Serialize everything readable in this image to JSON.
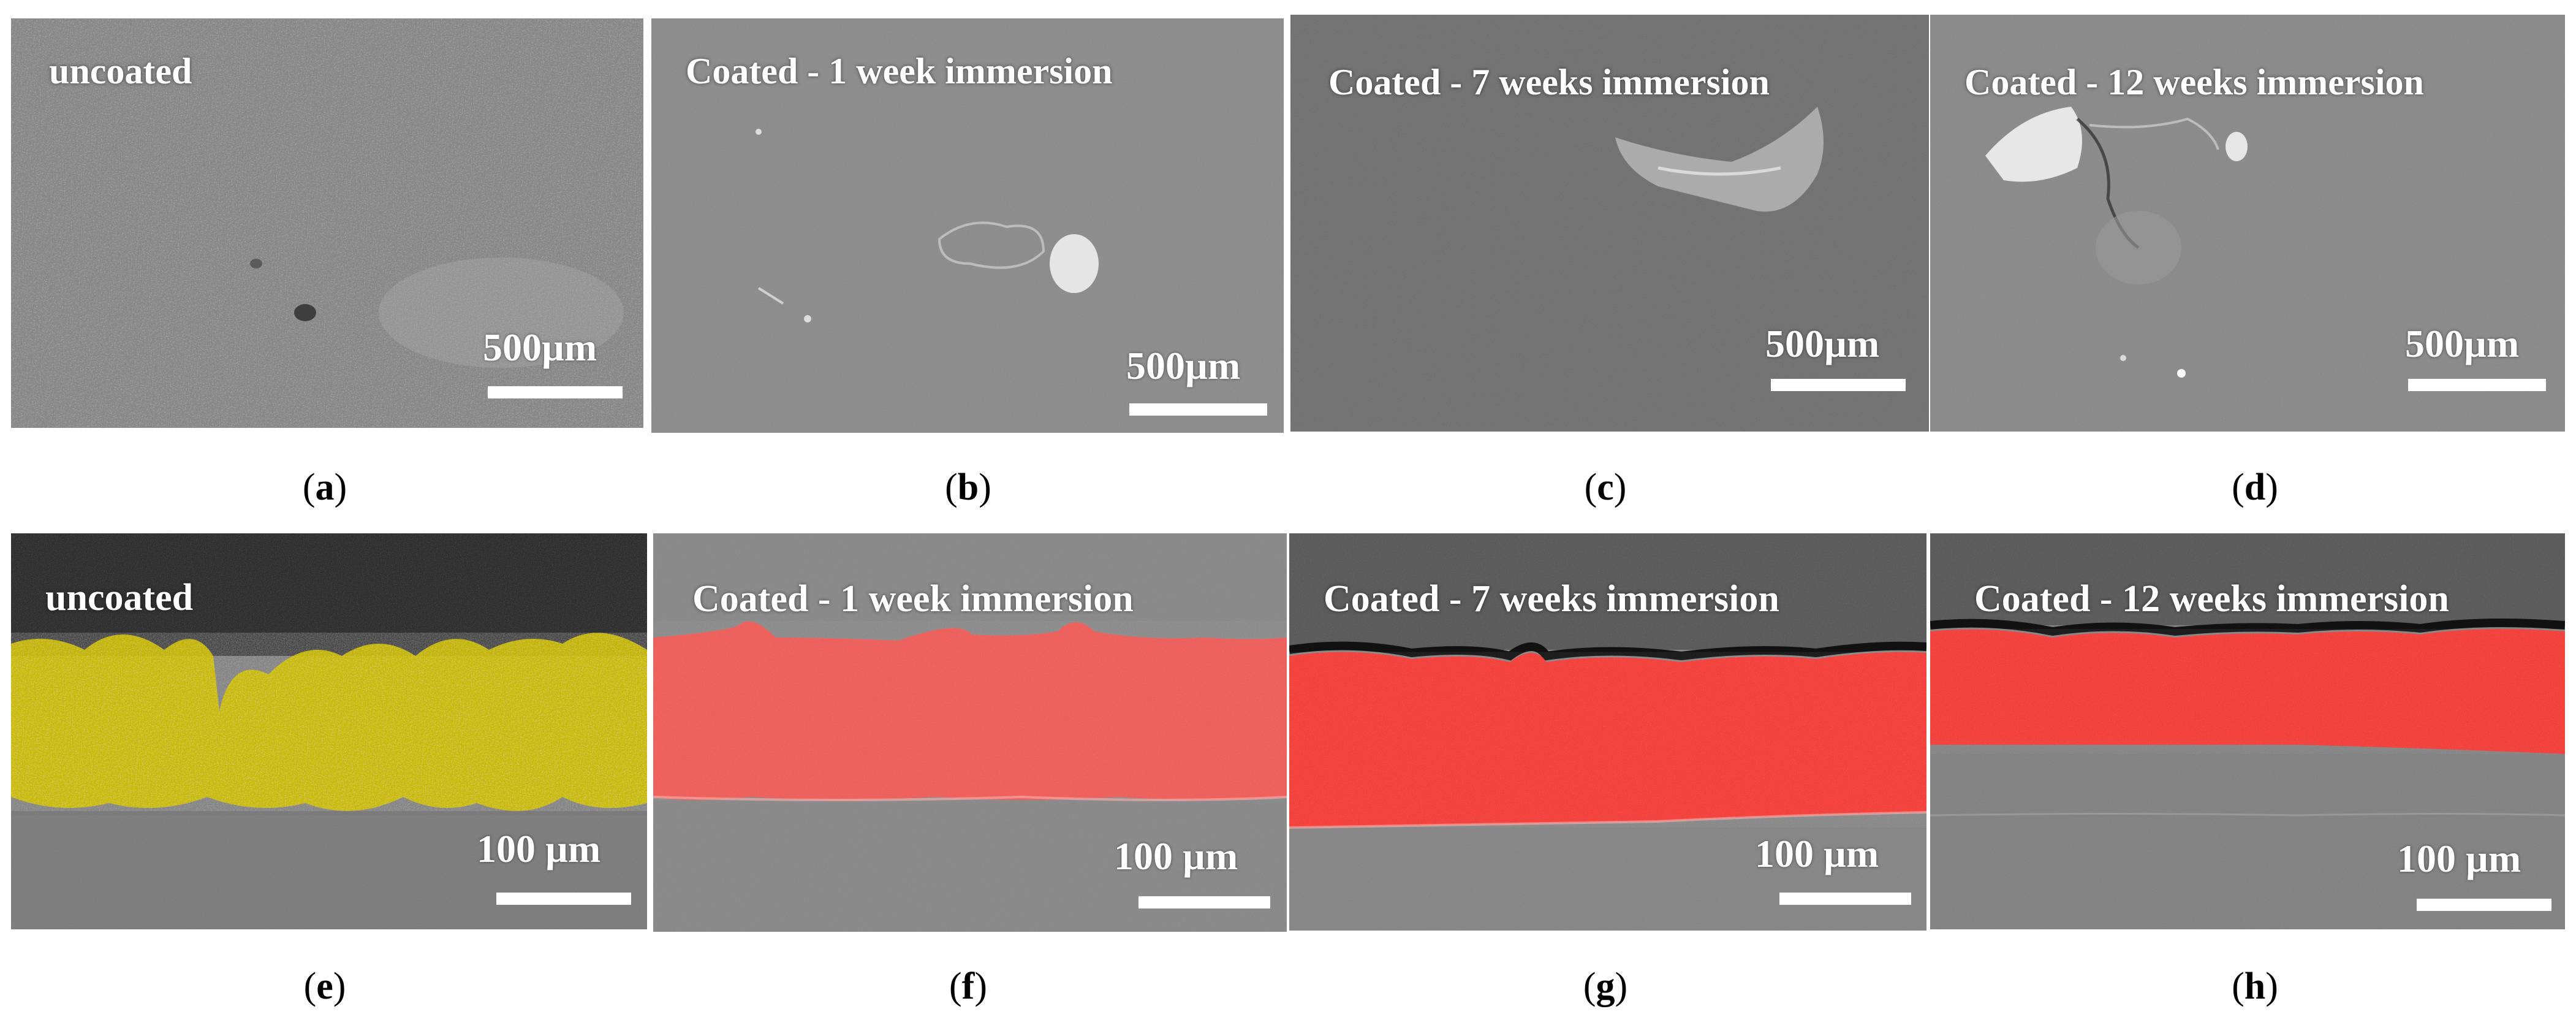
{
  "panels": {
    "a": {
      "label": "uncoated",
      "scale": "500µm",
      "caption_letter": "a"
    },
    "b": {
      "label": "Coated - 1 week immersion",
      "scale": "500µm",
      "caption_letter": "b"
    },
    "c": {
      "label": "Coated - 7 weeks immersion",
      "scale": "500µm",
      "caption_letter": "c"
    },
    "d": {
      "label": "Coated - 12 weeks immersion",
      "scale": "500µm",
      "caption_letter": "d"
    },
    "e": {
      "label": "uncoated",
      "scale": "100 µm",
      "caption_letter": "e"
    },
    "f": {
      "label": "Coated - 1 week immersion",
      "scale": "100 µm",
      "caption_letter": "f"
    },
    "g": {
      "label": "Coated - 7 weeks immersion",
      "scale": "100 µm",
      "caption_letter": "g"
    },
    "h": {
      "label": "Coated - 12 weeks immersion",
      "scale": "100 µm",
      "caption_letter": "h"
    }
  },
  "colors": {
    "uncoated_layer": "#d4c400",
    "coated_layer": "#ff5a55",
    "background": "#ffffff",
    "caption_text": "#000000"
  }
}
